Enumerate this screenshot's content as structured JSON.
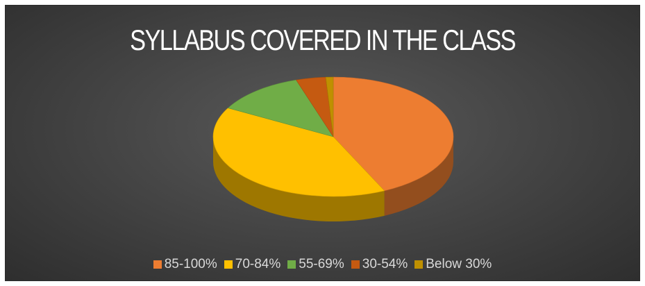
{
  "chart_data": {
    "type": "pie",
    "title": "SYLLABUS COVERED IN THE CLASS",
    "style": "3d-pie",
    "legend_position": "bottom",
    "categories": [
      "85-100%",
      "70-84%",
      "55-69%",
      "30-54%",
      "Below 30%"
    ],
    "values": [
      43,
      40,
      12,
      4,
      1
    ],
    "colors": [
      "#ED7D31",
      "#FFC000",
      "#70AD47",
      "#C55A11",
      "#BF9000"
    ]
  }
}
